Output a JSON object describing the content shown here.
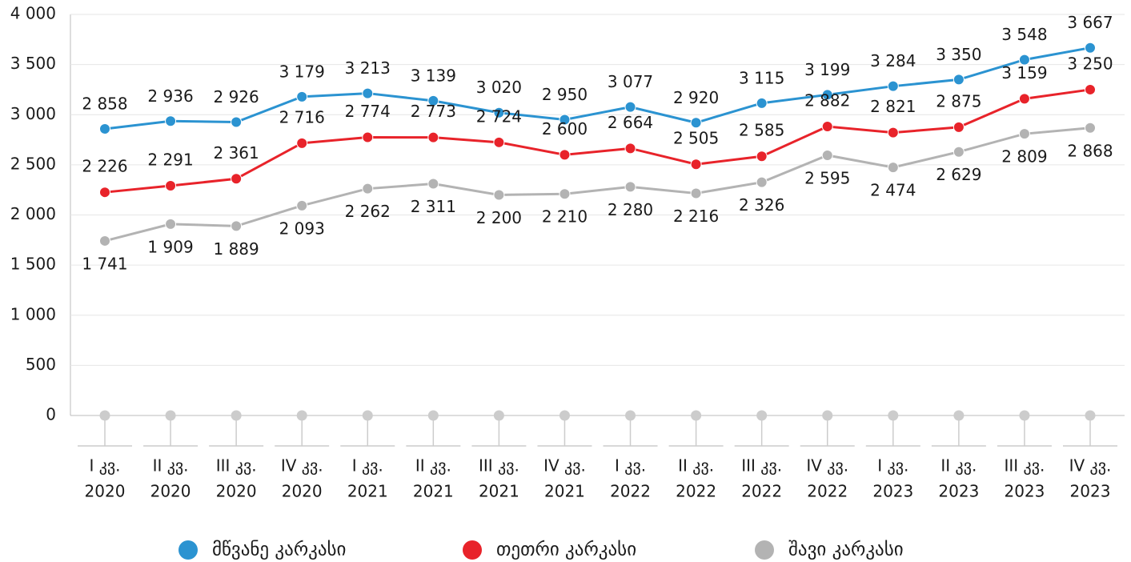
{
  "chart_data": {
    "type": "line",
    "categories": [
      [
        "I კვ.",
        "2020"
      ],
      [
        "II კვ.",
        "2020"
      ],
      [
        "III კვ.",
        "2020"
      ],
      [
        "IV კვ.",
        "2020"
      ],
      [
        "I კვ.",
        "2021"
      ],
      [
        "II კვ.",
        "2021"
      ],
      [
        "III კვ.",
        "2021"
      ],
      [
        "IV კვ.",
        "2021"
      ],
      [
        "I კვ.",
        "2022"
      ],
      [
        "II კვ.",
        "2022"
      ],
      [
        "III კვ.",
        "2022"
      ],
      [
        "IV კვ.",
        "2022"
      ],
      [
        "I კვ.",
        "2023"
      ],
      [
        "II კვ.",
        "2023"
      ],
      [
        "III კვ.",
        "2023"
      ],
      [
        "IV კვ.",
        "2023"
      ]
    ],
    "series": [
      {
        "name": "მწვანე კარკასი",
        "color": "#2b93d1",
        "values": [
          2858,
          2936,
          2926,
          3179,
          3213,
          3139,
          3020,
          2950,
          3077,
          2920,
          3115,
          3199,
          3284,
          3350,
          3548,
          3667
        ],
        "value_labels": [
          "2 858",
          "2 936",
          "2 926",
          "3 179",
          "3 213",
          "3 139",
          "3 020",
          "2 950",
          "3 077",
          "2 920",
          "3 115",
          "3 199",
          "3 284",
          "3 350",
          "3 548",
          "3 667"
        ]
      },
      {
        "name": "თეთრი კარკასი",
        "color": "#e8232a",
        "values": [
          2226,
          2291,
          2361,
          2716,
          2774,
          2773,
          2724,
          2600,
          2664,
          2505,
          2585,
          2882,
          2821,
          2875,
          3159,
          3250
        ],
        "value_labels": [
          "2 226",
          "2 291",
          "2 361",
          "2 716",
          "2 774",
          "2 773",
          "2 724",
          "2 600",
          "2 664",
          "2 505",
          "2 585",
          "2 882",
          "2 821",
          "2 875",
          "3 159",
          "3 250"
        ]
      },
      {
        "name": "შავი კარკასი",
        "color": "#b3b3b3",
        "values": [
          1741,
          1909,
          1889,
          2093,
          2262,
          2311,
          2200,
          2210,
          2280,
          2216,
          2326,
          2595,
          2474,
          2629,
          2809,
          2868
        ],
        "value_labels": [
          "1 741",
          "1 909",
          "1 889",
          "2 093",
          "2 262",
          "2 311",
          "2 200",
          "2 210",
          "2 280",
          "2 216",
          "2 326",
          "2 595",
          "2 474",
          "2 629",
          "2 809",
          "2 868"
        ]
      }
    ],
    "ylim": [
      0,
      4000
    ],
    "yticks": [
      0,
      500,
      {
        "value": 1000,
        "label": "1 000"
      },
      {
        "value": 1500,
        "label": "1 500"
      },
      {
        "value": 2000,
        "label": "2 000"
      },
      {
        "value": 2500,
        "label": "2 500"
      },
      {
        "value": 3000,
        "label": "3 000"
      },
      {
        "value": 3500,
        "label": "3 500"
      },
      {
        "value": 4000,
        "label": "4 000"
      }
    ],
    "grid": true
  }
}
